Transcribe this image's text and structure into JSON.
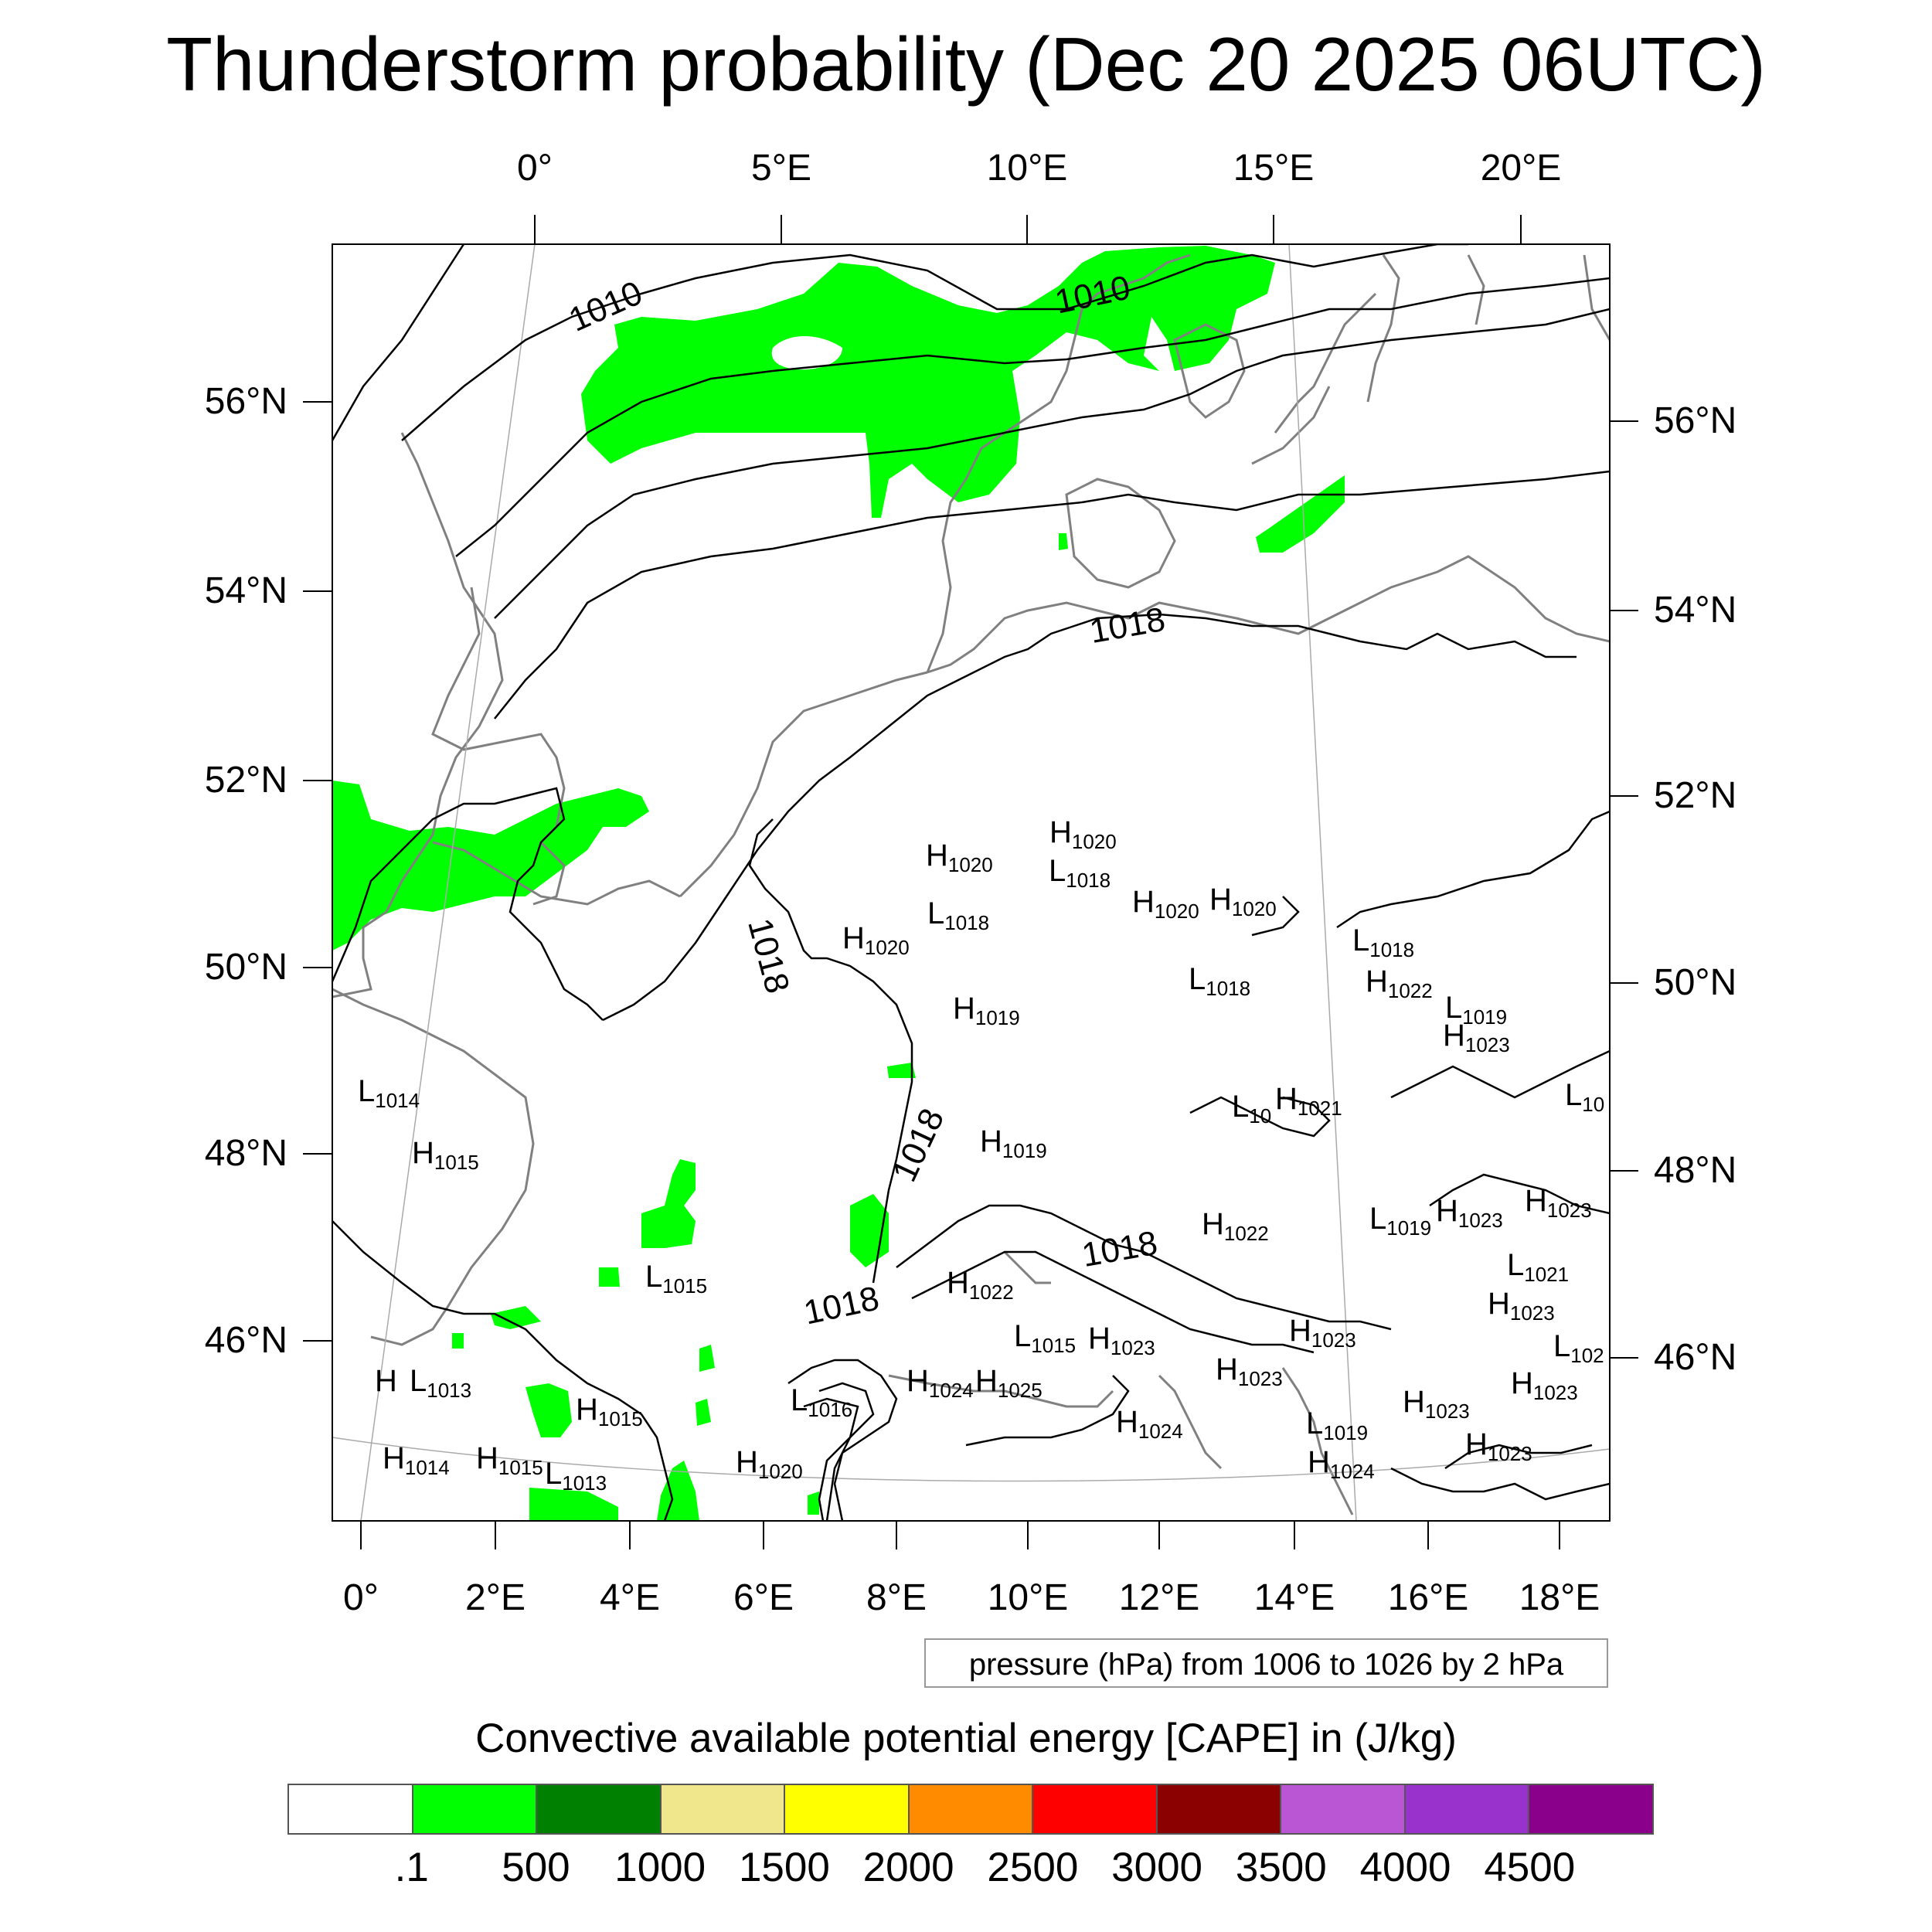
{
  "title": "Thunderstorm probability (Dec 20 2025 06UTC)",
  "top_lon_labels": [
    "0°",
    "5°E",
    "10°E",
    "15°E",
    "20°E"
  ],
  "bottom_lon_labels": [
    "0°",
    "2°E",
    "4°E",
    "6°E",
    "8°E",
    "10°E",
    "12°E",
    "14°E",
    "16°E",
    "18°E"
  ],
  "left_lat_labels": [
    "56°N",
    "54°N",
    "52°N",
    "50°N",
    "48°N",
    "46°N"
  ],
  "right_lat_labels": [
    "56°N",
    "54°N",
    "52°N",
    "50°N",
    "48°N",
    "46°N"
  ],
  "isobar_labels": [
    "1010",
    "1010",
    "1018",
    "1018",
    "1018",
    "1018",
    "1018"
  ],
  "pressure_centers": [
    {
      "type": "H",
      "value": "1020"
    },
    {
      "type": "H",
      "value": "1020"
    },
    {
      "type": "L",
      "value": "1018"
    },
    {
      "type": "L",
      "value": "1018"
    },
    {
      "type": "H",
      "value": "1020"
    },
    {
      "type": "H",
      "value": "1020"
    },
    {
      "type": "H",
      "value": "1020"
    },
    {
      "type": "L",
      "value": "1018"
    },
    {
      "type": "L",
      "value": "1018"
    },
    {
      "type": "H",
      "value": "1022"
    },
    {
      "type": "L",
      "value": "1019"
    },
    {
      "type": "H",
      "value": "1019"
    },
    {
      "type": "H",
      "value": "1023"
    },
    {
      "type": "L",
      "value": "1014"
    },
    {
      "type": "H",
      "value": "1015"
    },
    {
      "type": "L",
      "value": "10"
    },
    {
      "type": "H",
      "value": "1021"
    },
    {
      "type": "L",
      "value": "10"
    },
    {
      "type": "H",
      "value": "1019"
    },
    {
      "type": "H",
      "value": "1023"
    },
    {
      "type": "H",
      "value": "1023"
    },
    {
      "type": "L",
      "value": "1019"
    },
    {
      "type": "H",
      "value": "1022"
    },
    {
      "type": "L",
      "value": "1021"
    },
    {
      "type": "L",
      "value": "1015"
    },
    {
      "type": "H",
      "value": "1022"
    },
    {
      "type": "H",
      "value": "1023"
    },
    {
      "type": "L",
      "value": "1015"
    },
    {
      "type": "H",
      "value": "1023"
    },
    {
      "type": "H",
      "value": "1023"
    },
    {
      "type": "L",
      "value": "102"
    },
    {
      "type": "H",
      "value": "1023"
    },
    {
      "type": "H",
      "value": ""
    },
    {
      "type": "L",
      "value": "1013"
    },
    {
      "type": "H",
      "value": "1015"
    },
    {
      "type": "L",
      "value": "1016"
    },
    {
      "type": "H",
      "value": "1024"
    },
    {
      "type": "H",
      "value": "1025"
    },
    {
      "type": "H",
      "value": "1023"
    },
    {
      "type": "H",
      "value": "1024"
    },
    {
      "type": "L",
      "value": "1019"
    },
    {
      "type": "H",
      "value": "1014"
    },
    {
      "type": "H",
      "value": "1015"
    },
    {
      "type": "L",
      "value": "1013"
    },
    {
      "type": "H",
      "value": "1020"
    },
    {
      "type": "H",
      "value": "1024"
    },
    {
      "type": "H",
      "value": "1023"
    },
    {
      "type": "H",
      "value": "1023"
    }
  ],
  "contour_info": "pressure (hPa) from 1006 to 1026 by 2 hPa",
  "colorbar": {
    "title": "Convective available potential energy [CAPE] in (J/kg)",
    "colors": [
      "#ffffff",
      "#00ff00",
      "#008000",
      "#f0e68c",
      "#ffff00",
      "#ff8c00",
      "#ff0000",
      "#8b0000",
      "#ba55d3",
      "#9932cc",
      "#8b008b"
    ],
    "labels": [
      ".1",
      "500",
      "1000",
      "1500",
      "2000",
      "2500",
      "3000",
      "3500",
      "4000",
      "4500"
    ]
  },
  "colors": {
    "cape_fill": "#00ff00",
    "coastline": "#808080",
    "isobar": "#000000",
    "grid": "#aaaaaa"
  }
}
